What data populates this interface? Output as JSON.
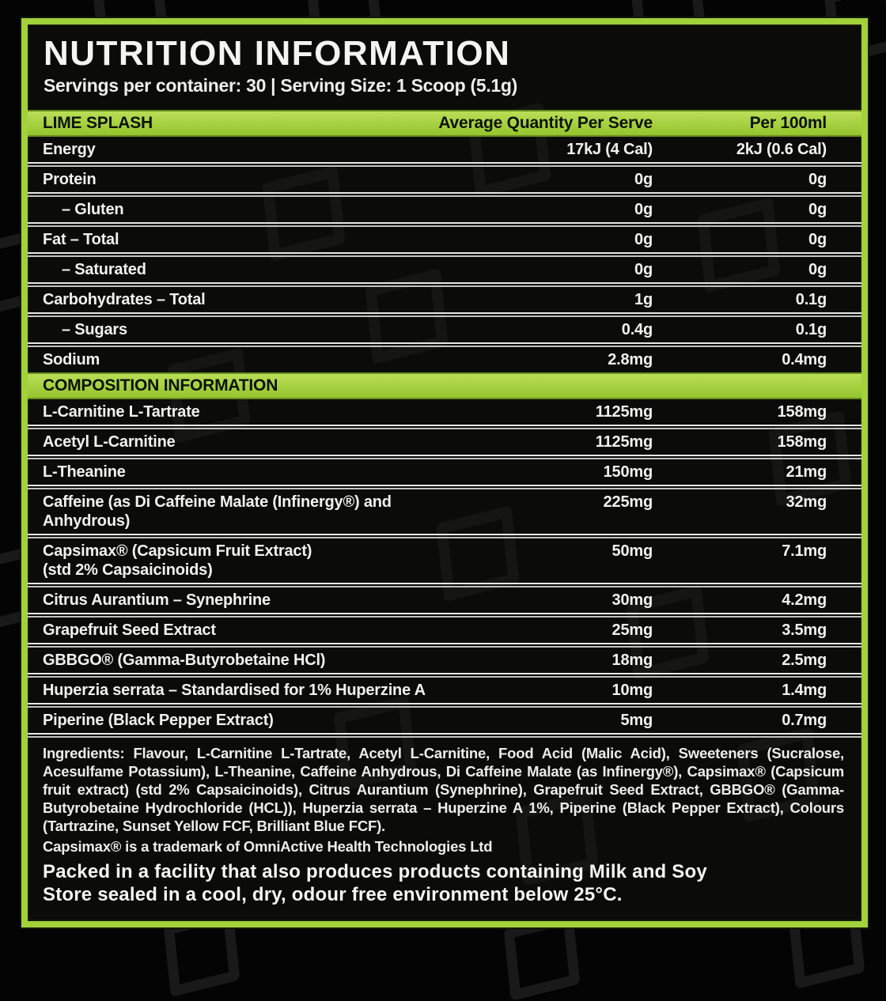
{
  "panel": {
    "title": "NUTRITION INFORMATION",
    "servings_line": "Servings per container: 30 | Serving Size: 1 Scoop (5.1g)",
    "colors": {
      "accent_green": "#a2d13c",
      "panel_black": "#0b0b09",
      "text_white": "#f1f1ee",
      "bar_text": "#0b1200"
    },
    "nutrition_table": {
      "flavor_label": "LIME SPLASH",
      "col_serve": "Average Quantity Per Serve",
      "col_100ml": "Per 100ml",
      "rows": [
        {
          "name": "Energy",
          "serve": "17kJ (4 Cal)",
          "per100": "2kJ (0.6 Cal)",
          "indent": false
        },
        {
          "name": "Protein",
          "serve": "0g",
          "per100": "0g",
          "indent": false
        },
        {
          "name": "– Gluten",
          "serve": "0g",
          "per100": "0g",
          "indent": true
        },
        {
          "name": "Fat – Total",
          "serve": "0g",
          "per100": "0g",
          "indent": false
        },
        {
          "name": "– Saturated",
          "serve": "0g",
          "per100": "0g",
          "indent": true
        },
        {
          "name": "Carbohydrates – Total",
          "serve": "1g",
          "per100": "0.1g",
          "indent": false
        },
        {
          "name": "– Sugars",
          "serve": "0.4g",
          "per100": "0.1g",
          "indent": true
        },
        {
          "name": "Sodium",
          "serve": "2.8mg",
          "per100": "0.4mg",
          "indent": false
        }
      ]
    },
    "composition_table": {
      "header": "COMPOSITION INFORMATION",
      "rows": [
        {
          "name": "L-Carnitine L-Tartrate",
          "serve": "1125mg",
          "per100": "158mg",
          "indent": false
        },
        {
          "name": "Acetyl L-Carnitine",
          "serve": "1125mg",
          "per100": "158mg",
          "indent": false
        },
        {
          "name": "L-Theanine",
          "serve": "150mg",
          "per100": "21mg",
          "indent": false
        },
        {
          "name": "Caffeine (as Di Caffeine Malate (Infinergy®) and\nAnhydrous)",
          "serve": "225mg",
          "per100": "32mg",
          "indent": false
        },
        {
          "name": "Capsimax® (Capsicum Fruit Extract)\n(std 2% Capsaicinoids)",
          "serve": "50mg",
          "per100": "7.1mg",
          "indent": false
        },
        {
          "name": "Citrus Aurantium – Synephrine",
          "serve": "30mg",
          "per100": "4.2mg",
          "indent": false
        },
        {
          "name": "Grapefruit Seed Extract",
          "serve": "25mg",
          "per100": "3.5mg",
          "indent": false
        },
        {
          "name": "GBBGO® (Gamma-Butyrobetaine HCl)",
          "serve": "18mg",
          "per100": "2.5mg",
          "indent": false
        },
        {
          "name": "Huperzia serrata – Standardised for 1% Huperzine A",
          "serve": "10mg",
          "per100": "1.4mg",
          "indent": false
        },
        {
          "name": "Piperine (Black Pepper Extract)",
          "serve": "5mg",
          "per100": "0.7mg",
          "indent": false
        }
      ]
    },
    "ingredients": "Ingredients: Flavour, L-Carnitine L-Tartrate, Acetyl L-Carnitine, Food Acid (Malic Acid), Sweeteners (Sucralose, Acesulfame Potassium), L-Theanine, Caffeine Anhydrous, Di Caffeine Malate (as Infinergy®), Capsimax® (Capsicum fruit extract) (std 2% Capsaicinoids), Citrus Aurantium (Synephrine), Grapefruit Seed Extract, GBBGO® (Gamma-Butyrobetaine Hydrochloride (HCL)), Huperzia serrata – Huperzine A 1%, Piperine (Black Pepper Extract), Colours (Tartrazine, Sunset Yellow FCF, Brilliant Blue FCF).",
    "trademark_note": "Capsimax® is a trademark of OmniActive Health Technologies Ltd",
    "allergen_line1": "Packed in a facility that also produces products containing Milk and Soy",
    "allergen_line2": "Store sealed in a cool, dry, odour free environment below 25°C."
  }
}
